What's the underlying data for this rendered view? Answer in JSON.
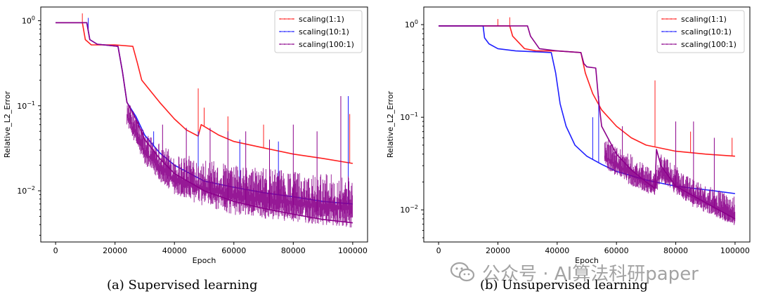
{
  "chart_data": [
    {
      "type": "line",
      "subtitle": "(a) Supervised learning",
      "xlabel": "Epoch",
      "ylabel": "Relative_L2_Error",
      "yscale": "log",
      "xlim": [
        -5000,
        105000
      ],
      "ylim": [
        0.0025,
        1.45
      ],
      "x_ticks": [
        0,
        20000,
        40000,
        60000,
        80000,
        100000
      ],
      "y_ticks": [
        0.01,
        0.1,
        1
      ],
      "y_tick_labels": [
        [
          "10",
          "−2"
        ],
        [
          "10",
          "−1"
        ],
        [
          "10",
          "0"
        ]
      ],
      "grid": false,
      "legend_position": "top-right",
      "series": [
        {
          "name": "scaling(1:1)",
          "color": "#ff2020",
          "points": [
            [
              0,
              0.95
            ],
            [
              9000,
              0.95
            ],
            [
              10000,
              0.6
            ],
            [
              12000,
              0.52
            ],
            [
              20000,
              0.52
            ],
            [
              26000,
              0.5
            ],
            [
              27500,
              0.32
            ],
            [
              29000,
              0.2
            ],
            [
              35000,
              0.11
            ],
            [
              40000,
              0.07
            ],
            [
              44000,
              0.052
            ],
            [
              48000,
              0.044
            ],
            [
              49000,
              0.06
            ],
            [
              55000,
              0.045
            ],
            [
              60000,
              0.038
            ],
            [
              70000,
              0.032
            ],
            [
              80000,
              0.027
            ],
            [
              90000,
              0.024
            ],
            [
              100000,
              0.021
            ]
          ],
          "spikes": [
            [
              9000,
              1.22
            ],
            [
              48000,
              0.16
            ],
            [
              50000,
              0.095
            ],
            [
              58000,
              0.075
            ],
            [
              70000,
              0.06
            ],
            [
              99000,
              0.08
            ]
          ]
        },
        {
          "name": "scaling(10:1)",
          "color": "#2020ff",
          "points": [
            [
              0,
              0.95
            ],
            [
              10500,
              0.95
            ],
            [
              11500,
              0.6
            ],
            [
              14000,
              0.53
            ],
            [
              21000,
              0.5
            ],
            [
              22500,
              0.25
            ],
            [
              24000,
              0.11
            ],
            [
              27000,
              0.075
            ],
            [
              30000,
              0.045
            ],
            [
              35000,
              0.028
            ],
            [
              40000,
              0.02
            ],
            [
              50000,
              0.013
            ],
            [
              60000,
              0.011
            ],
            [
              70000,
              0.0095
            ],
            [
              80000,
              0.0085
            ],
            [
              90000,
              0.0075
            ],
            [
              100000,
              0.007
            ]
          ],
          "spikes": [
            [
              11000,
              1.08
            ],
            [
              33000,
              0.05
            ],
            [
              48000,
              0.05
            ],
            [
              62000,
              0.04
            ],
            [
              75000,
              0.038
            ],
            [
              98500,
              0.13
            ]
          ]
        },
        {
          "name": "scaling(100:1)",
          "color": "#8b008b",
          "points": [
            [
              0,
              0.95
            ],
            [
              10500,
              0.95
            ],
            [
              11500,
              0.6
            ],
            [
              14000,
              0.53
            ],
            [
              21000,
              0.5
            ],
            [
              22500,
              0.25
            ],
            [
              24000,
              0.11
            ],
            [
              27000,
              0.07
            ],
            [
              30000,
              0.04
            ],
            [
              35000,
              0.024
            ],
            [
              40000,
              0.016
            ],
            [
              50000,
              0.01
            ],
            [
              60000,
              0.0075
            ],
            [
              70000,
              0.0062
            ],
            [
              80000,
              0.0053
            ],
            [
              90000,
              0.0046
            ],
            [
              100000,
              0.0042
            ]
          ],
          "band_low": [
            [
              24000,
              0.06
            ],
            [
              30000,
              0.02
            ],
            [
              40000,
              0.0085
            ],
            [
              60000,
              0.0052
            ],
            [
              80000,
              0.0043
            ],
            [
              100000,
              0.0036
            ]
          ],
          "band_high": [
            [
              24000,
              0.12
            ],
            [
              30000,
              0.05
            ],
            [
              40000,
              0.028
            ],
            [
              60000,
              0.02
            ],
            [
              80000,
              0.017
            ],
            [
              100000,
              0.015
            ]
          ],
          "spikes": [
            [
              36000,
              0.06
            ],
            [
              44000,
              0.055
            ],
            [
              52000,
              0.055
            ],
            [
              58000,
              0.05
            ],
            [
              64000,
              0.05
            ],
            [
              72000,
              0.04
            ],
            [
              80000,
              0.06
            ],
            [
              88000,
              0.05
            ],
            [
              96000,
              0.13
            ]
          ]
        }
      ]
    },
    {
      "type": "line",
      "subtitle": "(b) Unsupervised learning",
      "xlabel": "Epoch",
      "ylabel": "Relative_L2_Error",
      "yscale": "log",
      "xlim": [
        -5000,
        105000
      ],
      "ylim": [
        0.0045,
        1.55
      ],
      "x_ticks": [
        0,
        20000,
        40000,
        60000,
        80000,
        100000
      ],
      "y_ticks": [
        0.01,
        0.1,
        1
      ],
      "y_tick_labels": [
        [
          "10",
          "−2"
        ],
        [
          "10",
          "−1"
        ],
        [
          "10",
          "0"
        ]
      ],
      "grid": false,
      "legend_position": "top-right",
      "series": [
        {
          "name": "scaling(1:1)",
          "color": "#ff2020",
          "points": [
            [
              0,
              0.97
            ],
            [
              24000,
              0.97
            ],
            [
              25000,
              0.75
            ],
            [
              29000,
              0.55
            ],
            [
              33000,
              0.52
            ],
            [
              40000,
              0.52
            ],
            [
              48000,
              0.5
            ],
            [
              49500,
              0.3
            ],
            [
              52000,
              0.18
            ],
            [
              55000,
              0.12
            ],
            [
              60000,
              0.08
            ],
            [
              65000,
              0.06
            ],
            [
              70000,
              0.05
            ],
            [
              80000,
              0.043
            ],
            [
              90000,
              0.04
            ],
            [
              100000,
              0.038
            ]
          ],
          "spikes": [
            [
              20000,
              1.15
            ],
            [
              24000,
              1.2
            ],
            [
              73000,
              0.25
            ],
            [
              85000,
              0.07
            ],
            [
              99000,
              0.06
            ]
          ]
        },
        {
          "name": "scaling(10:1)",
          "color": "#2020ff",
          "points": [
            [
              0,
              0.97
            ],
            [
              15000,
              0.97
            ],
            [
              15500,
              0.72
            ],
            [
              17000,
              0.62
            ],
            [
              20000,
              0.55
            ],
            [
              26000,
              0.52
            ],
            [
              38000,
              0.5
            ],
            [
              39500,
              0.3
            ],
            [
              41000,
              0.14
            ],
            [
              43000,
              0.08
            ],
            [
              46000,
              0.05
            ],
            [
              50000,
              0.038
            ],
            [
              55000,
              0.031
            ],
            [
              60000,
              0.026
            ],
            [
              70000,
              0.021
            ],
            [
              80000,
              0.018
            ],
            [
              90000,
              0.0165
            ],
            [
              100000,
              0.015
            ]
          ],
          "spikes": [
            [
              52000,
              0.1
            ],
            [
              54000,
              0.17
            ]
          ]
        },
        {
          "name": "scaling(100:1)",
          "color": "#8b008b",
          "points": [
            [
              0,
              0.97
            ],
            [
              30000,
              0.97
            ],
            [
              31000,
              0.75
            ],
            [
              34000,
              0.55
            ],
            [
              40000,
              0.52
            ],
            [
              48000,
              0.5
            ],
            [
              49000,
              0.38
            ],
            [
              50000,
              0.35
            ],
            [
              53000,
              0.34
            ],
            [
              54000,
              0.15
            ],
            [
              55000,
              0.08
            ],
            [
              60000,
              0.04
            ],
            [
              65000,
              0.027
            ],
            [
              70000,
              0.02
            ],
            [
              73000,
              0.017
            ],
            [
              73500,
              0.045
            ],
            [
              75000,
              0.03
            ],
            [
              80000,
              0.018
            ],
            [
              90000,
              0.012
            ],
            [
              100000,
              0.008
            ]
          ],
          "band_low": [
            [
              56000,
              0.028
            ],
            [
              65000,
              0.018
            ],
            [
              73000,
              0.014
            ],
            [
              75000,
              0.02
            ],
            [
              85000,
              0.011
            ],
            [
              95000,
              0.008
            ],
            [
              100000,
              0.0066
            ]
          ],
          "band_high": [
            [
              56000,
              0.06
            ],
            [
              65000,
              0.04
            ],
            [
              73000,
              0.025
            ],
            [
              75000,
              0.04
            ],
            [
              85000,
              0.022
            ],
            [
              95000,
              0.016
            ],
            [
              100000,
              0.014
            ]
          ],
          "spikes": [
            [
              62000,
              0.08
            ],
            [
              80000,
              0.09
            ],
            [
              86000,
              0.09
            ],
            [
              93000,
              0.06
            ]
          ]
        }
      ]
    }
  ],
  "watermark": {
    "text": "公众号 · AI算法科研paper",
    "icon": "wechat-icon"
  }
}
